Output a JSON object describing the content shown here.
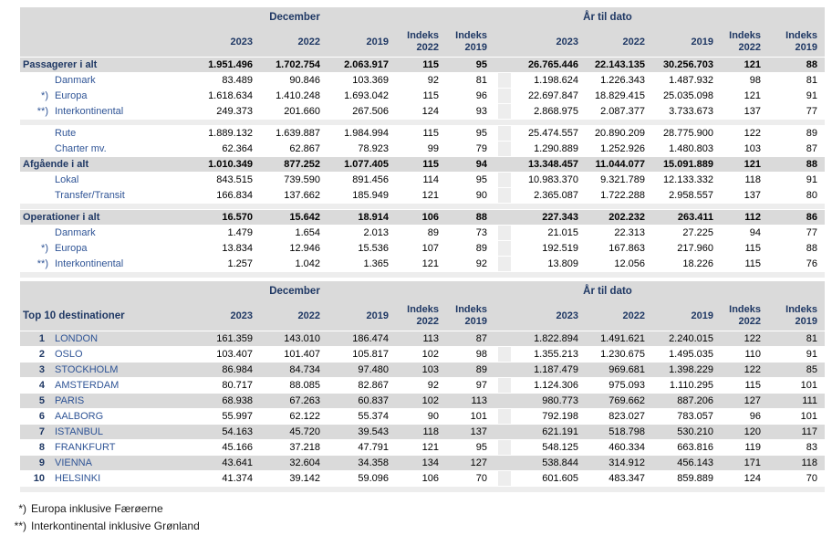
{
  "colors": {
    "navy": "#1F3864",
    "blue": "#2F5496",
    "row_gray": "#DADADA",
    "spacer_gray": "#EDEDED",
    "num": "#000000"
  },
  "headers": {
    "december": "December",
    "ytd": "År til dato",
    "years": [
      "2023",
      "2022",
      "2019"
    ],
    "index_label": "Indeks",
    "index_years": [
      "2022",
      "2019"
    ]
  },
  "traffic": {
    "rows": [
      {
        "type": "total",
        "marker": "",
        "label": "Passagerer i alt",
        "dec": [
          "1.951.496",
          "1.702.754",
          "2.063.917",
          "115",
          "95"
        ],
        "ytd": [
          "26.765.446",
          "22.143.135",
          "30.256.703",
          "121",
          "88"
        ]
      },
      {
        "type": "sub",
        "marker": "",
        "label": "Danmark",
        "dec": [
          "83.489",
          "90.846",
          "103.369",
          "92",
          "81"
        ],
        "ytd": [
          "1.198.624",
          "1.226.343",
          "1.487.932",
          "98",
          "81"
        ]
      },
      {
        "type": "sub",
        "marker": "*)",
        "label": "Europa",
        "dec": [
          "1.618.634",
          "1.410.248",
          "1.693.042",
          "115",
          "96"
        ],
        "ytd": [
          "22.697.847",
          "18.829.415",
          "25.035.098",
          "121",
          "91"
        ]
      },
      {
        "type": "sub",
        "marker": "**)",
        "label": "Interkontinental",
        "dec": [
          "249.373",
          "201.660",
          "267.506",
          "124",
          "93"
        ],
        "ytd": [
          "2.868.975",
          "2.087.377",
          "3.733.673",
          "137",
          "77"
        ]
      },
      {
        "type": "sub",
        "gap_before": true,
        "marker": "",
        "label": "Rute",
        "dec": [
          "1.889.132",
          "1.639.887",
          "1.984.994",
          "115",
          "95"
        ],
        "ytd": [
          "25.474.557",
          "20.890.209",
          "28.775.900",
          "122",
          "89"
        ]
      },
      {
        "type": "sub",
        "marker": "",
        "label": "Charter mv.",
        "dec": [
          "62.364",
          "62.867",
          "78.923",
          "99",
          "79"
        ],
        "ytd": [
          "1.290.889",
          "1.252.926",
          "1.480.803",
          "103",
          "87"
        ]
      },
      {
        "type": "total",
        "marker": "",
        "label": "Afgående i alt",
        "dec": [
          "1.010.349",
          "877.252",
          "1.077.405",
          "115",
          "94"
        ],
        "ytd": [
          "13.348.457",
          "11.044.077",
          "15.091.889",
          "121",
          "88"
        ]
      },
      {
        "type": "sub",
        "marker": "",
        "label": "Lokal",
        "dec": [
          "843.515",
          "739.590",
          "891.456",
          "114",
          "95"
        ],
        "ytd": [
          "10.983.370",
          "9.321.789",
          "12.133.332",
          "118",
          "91"
        ]
      },
      {
        "type": "sub",
        "marker": "",
        "label": "Transfer/Transit",
        "dec": [
          "166.834",
          "137.662",
          "185.949",
          "121",
          "90"
        ],
        "ytd": [
          "2.365.087",
          "1.722.288",
          "2.958.557",
          "137",
          "80"
        ]
      },
      {
        "type": "total",
        "gap_before": true,
        "marker": "",
        "label": "Operationer i alt",
        "dec": [
          "16.570",
          "15.642",
          "18.914",
          "106",
          "88"
        ],
        "ytd": [
          "227.343",
          "202.232",
          "263.411",
          "112",
          "86"
        ]
      },
      {
        "type": "sub",
        "marker": "",
        "label": "Danmark",
        "dec": [
          "1.479",
          "1.654",
          "2.013",
          "89",
          "73"
        ],
        "ytd": [
          "21.015",
          "22.313",
          "27.225",
          "94",
          "77"
        ]
      },
      {
        "type": "sub",
        "marker": "*)",
        "label": "Europa",
        "dec": [
          "13.834",
          "12.946",
          "15.536",
          "107",
          "89"
        ],
        "ytd": [
          "192.519",
          "167.863",
          "217.960",
          "115",
          "88"
        ]
      },
      {
        "type": "sub",
        "marker": "**)",
        "label": "Interkontinental",
        "dec": [
          "1.257",
          "1.042",
          "1.365",
          "121",
          "92"
        ],
        "ytd": [
          "13.809",
          "12.056",
          "18.226",
          "115",
          "76"
        ]
      }
    ]
  },
  "top10": {
    "label": "Top 10 destinationer",
    "rows": [
      {
        "rank": "1",
        "name": "LONDON",
        "dec": [
          "161.359",
          "143.010",
          "186.474",
          "113",
          "87"
        ],
        "ytd": [
          "1.822.894",
          "1.491.621",
          "2.240.015",
          "122",
          "81"
        ]
      },
      {
        "rank": "2",
        "name": "OSLO",
        "dec": [
          "103.407",
          "101.407",
          "105.817",
          "102",
          "98"
        ],
        "ytd": [
          "1.355.213",
          "1.230.675",
          "1.495.035",
          "110",
          "91"
        ]
      },
      {
        "rank": "3",
        "name": "STOCKHOLM",
        "dec": [
          "86.984",
          "84.734",
          "97.480",
          "103",
          "89"
        ],
        "ytd": [
          "1.187.479",
          "969.681",
          "1.398.229",
          "122",
          "85"
        ]
      },
      {
        "rank": "4",
        "name": "AMSTERDAM",
        "dec": [
          "80.717",
          "88.085",
          "82.867",
          "92",
          "97"
        ],
        "ytd": [
          "1.124.306",
          "975.093",
          "1.110.295",
          "115",
          "101"
        ]
      },
      {
        "rank": "5",
        "name": "PARIS",
        "dec": [
          "68.938",
          "67.263",
          "60.837",
          "102",
          "113"
        ],
        "ytd": [
          "980.773",
          "769.662",
          "887.206",
          "127",
          "111"
        ]
      },
      {
        "rank": "6",
        "name": "AALBORG",
        "dec": [
          "55.997",
          "62.122",
          "55.374",
          "90",
          "101"
        ],
        "ytd": [
          "792.198",
          "823.027",
          "783.057",
          "96",
          "101"
        ]
      },
      {
        "rank": "7",
        "name": "ISTANBUL",
        "dec": [
          "54.163",
          "45.720",
          "39.543",
          "118",
          "137"
        ],
        "ytd": [
          "621.191",
          "518.798",
          "530.210",
          "120",
          "117"
        ]
      },
      {
        "rank": "8",
        "name": "FRANKFURT",
        "dec": [
          "45.166",
          "37.218",
          "47.791",
          "121",
          "95"
        ],
        "ytd": [
          "548.125",
          "460.334",
          "663.816",
          "119",
          "83"
        ]
      },
      {
        "rank": "9",
        "name": "VIENNA",
        "dec": [
          "43.641",
          "32.604",
          "34.358",
          "134",
          "127"
        ],
        "ytd": [
          "538.844",
          "314.912",
          "456.143",
          "171",
          "118"
        ]
      },
      {
        "rank": "10",
        "name": "HELSINKI",
        "dec": [
          "41.374",
          "39.142",
          "59.096",
          "106",
          "70"
        ],
        "ytd": [
          "601.605",
          "483.347",
          "859.889",
          "124",
          "70"
        ]
      }
    ]
  },
  "footnotes": [
    {
      "marker": "*)",
      "text": "Europa inklusive Færøerne"
    },
    {
      "marker": "**)",
      "text": "Interkontinental inklusive Grønland"
    }
  ]
}
